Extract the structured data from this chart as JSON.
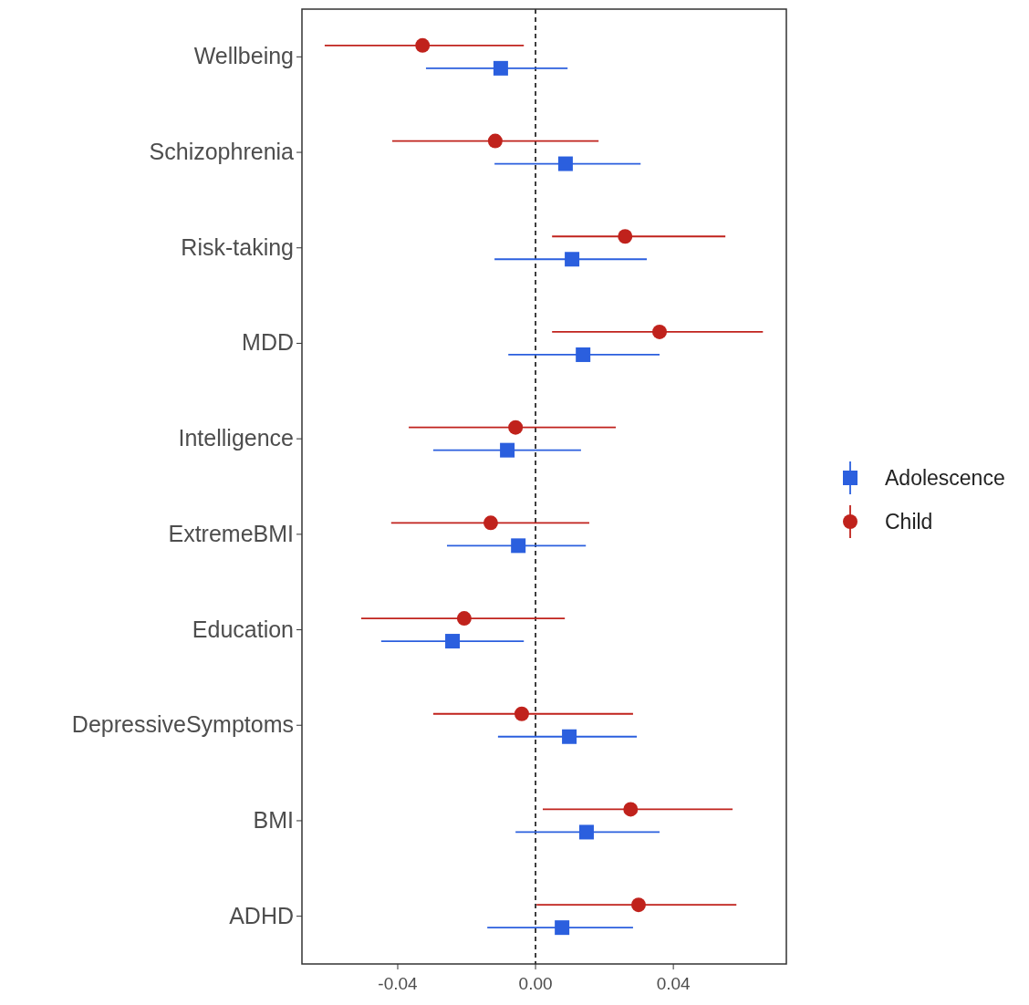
{
  "chart_data": {
    "type": "scatter",
    "orientation": "horizontal",
    "categories": [
      "Wellbeing",
      "Schizophrenia",
      "Risk-taking",
      "MDD",
      "Intelligence",
      "ExtremeBMI",
      "Education",
      "DepressiveSymptoms",
      "BMI",
      "ADHD"
    ],
    "series": [
      {
        "name": "Adolescence",
        "color": "#2b5fde",
        "marker": "square",
        "values": [
          -0.0101,
          0.0087,
          0.0106,
          0.0138,
          -0.0082,
          -0.005,
          -0.0241,
          0.0098,
          0.0148,
          0.0077
        ],
        "errors": [
          [
            -0.0318,
            0.0093
          ],
          [
            -0.0119,
            0.0305
          ],
          [
            -0.0119,
            0.0323
          ],
          [
            -0.0079,
            0.036
          ],
          [
            -0.0297,
            0.0132
          ],
          [
            -0.0257,
            0.0146
          ],
          [
            -0.0448,
            -0.0034
          ],
          [
            -0.0109,
            0.0294
          ],
          [
            -0.0058,
            0.036
          ],
          [
            -0.014,
            0.0283
          ]
        ]
      },
      {
        "name": "Child",
        "color": "#c0221c",
        "marker": "circle",
        "values": [
          -0.0328,
          -0.0117,
          0.026,
          0.036,
          -0.0058,
          -0.013,
          -0.0207,
          -0.004,
          0.0276,
          0.0299
        ],
        "errors": [
          [
            -0.0612,
            -0.0034
          ],
          [
            -0.0416,
            0.0183
          ],
          [
            0.0048,
            0.0551
          ],
          [
            0.0048,
            0.066
          ],
          [
            -0.0368,
            0.0233
          ],
          [
            -0.0419,
            0.0156
          ],
          [
            -0.0506,
            0.0085
          ],
          [
            -0.0297,
            0.0283
          ],
          [
            0.0021,
            0.0572
          ],
          [
            0.0003,
            0.0583
          ]
        ]
      }
    ],
    "xlim": [
      -0.0678,
      0.0728
    ],
    "xticks": [
      {
        "value": -0.04,
        "label": "-0.04"
      },
      {
        "value": 0,
        "label": "0.00"
      },
      {
        "value": 0.04,
        "label": "0.04"
      }
    ],
    "ref_lines": [
      {
        "axis": "x",
        "value": 0,
        "line_style": "dashed",
        "color": "#000000"
      }
    ],
    "grid": false,
    "legend": "right"
  }
}
